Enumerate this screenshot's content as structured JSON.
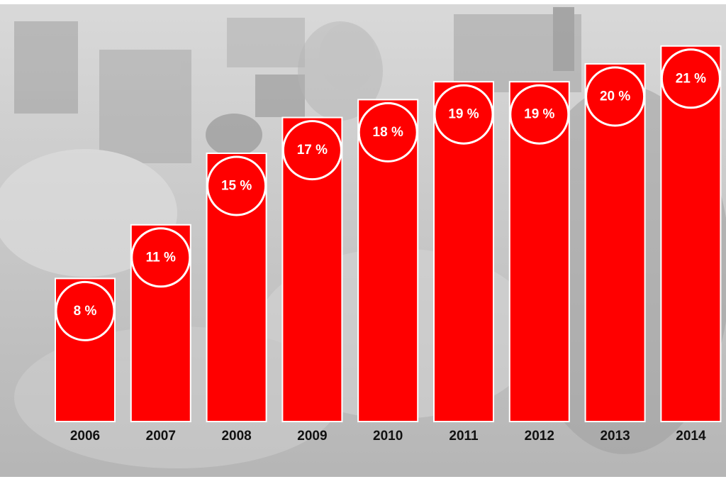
{
  "chart_data": {
    "type": "bar",
    "categories": [
      "2006",
      "2007",
      "2008",
      "2009",
      "2010",
      "2011",
      "2012",
      "2013",
      "2014"
    ],
    "values": [
      8,
      11,
      15,
      17,
      18,
      19,
      19,
      20,
      21
    ],
    "data_labels": [
      "8 %",
      "11 %",
      "15 %",
      "17 %",
      "18 %",
      "19 %",
      "19 %",
      "20 %",
      "21 %"
    ],
    "title": "",
    "xlabel": "",
    "ylabel": "",
    "ylim": [
      0,
      22
    ],
    "grid": false,
    "legend": "none",
    "colors": {
      "bar": "#ff0000",
      "label": "#ffffff",
      "tick": "#111111",
      "background": "#bdbdbd"
    }
  }
}
